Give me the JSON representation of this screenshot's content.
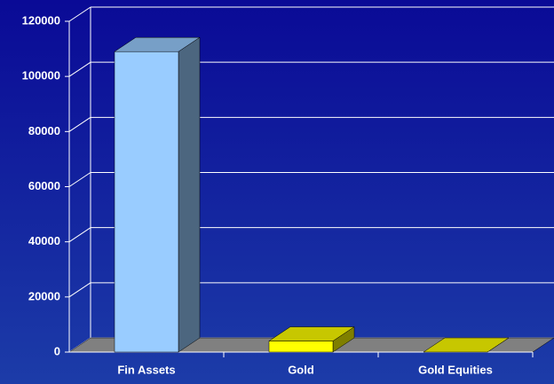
{
  "chart_data": {
    "type": "bar3d",
    "categories": [
      "Fin Assets",
      "Gold",
      "Gold Equities"
    ],
    "values": [
      109000,
      4000,
      0
    ],
    "colors": [
      "#99ccff",
      "#ffff00",
      "#ffff00"
    ],
    "ylim": [
      0,
      120000
    ],
    "yticks": [
      0,
      20000,
      40000,
      60000,
      80000,
      100000,
      120000
    ],
    "grid": true
  }
}
